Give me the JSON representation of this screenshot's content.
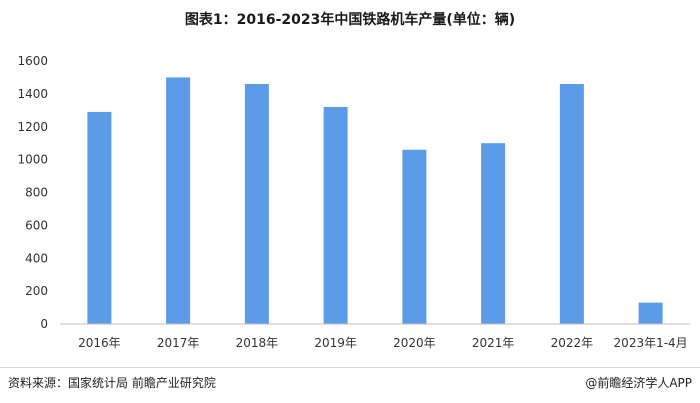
{
  "chart_data": {
    "type": "bar",
    "title": "图表1：2016-2023年中国铁路机车产量(单位：辆)",
    "categories": [
      "2016年",
      "2017年",
      "2018年",
      "2019年",
      "2020年",
      "2021年",
      "2022年",
      "2023年1-4月"
    ],
    "values": [
      1290,
      1500,
      1460,
      1320,
      1060,
      1100,
      1460,
      130
    ],
    "ylim": [
      0,
      1600
    ],
    "yticks": [
      0,
      200,
      400,
      600,
      800,
      1000,
      1200,
      1400,
      1600
    ],
    "grid": false,
    "bar_color": "#5b9be8",
    "xlabel": "",
    "ylabel": ""
  },
  "footer": {
    "source": "资料来源：国家统计局 前瞻产业研究院",
    "brand": "@前瞻经济学人APP"
  }
}
